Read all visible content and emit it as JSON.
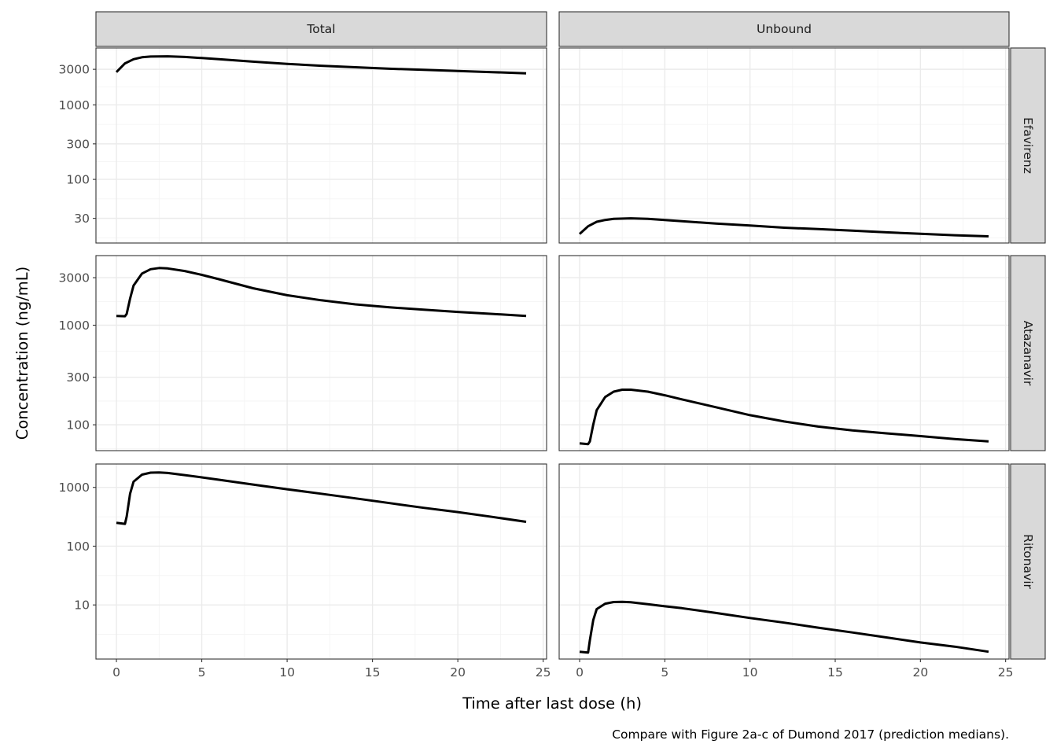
{
  "chart_data": {
    "type": "line",
    "caption": "Compare with Figure 2a-c of Dumond 2017 (prediction medians).",
    "xlabel": "Time after last dose (h)",
    "ylabel": "Concentration (ng/mL)",
    "y_scale": "log10",
    "grid": true,
    "line_color": "#000000",
    "columns": [
      "Total",
      "Unbound"
    ],
    "rows": [
      "Efavirenz",
      "Atazanavir",
      "Ritonavir"
    ],
    "xlim": [
      -1.2,
      25.2
    ],
    "x_ticks": [
      0,
      5,
      10,
      15,
      20,
      25
    ],
    "x_tick_labels": [
      "0",
      "5",
      "10",
      "15",
      "20",
      "25"
    ],
    "row_axes": [
      {
        "ylim": [
          14,
          5800
        ],
        "y_ticks": [
          30,
          100,
          300,
          1000,
          3000
        ],
        "y_tick_labels": [
          "30",
          "100",
          "300",
          "1000",
          "3000"
        ]
      },
      {
        "ylim": [
          55,
          5000
        ],
        "y_ticks": [
          100,
          300,
          1000,
          3000
        ],
        "y_tick_labels": [
          "100",
          "300",
          "1000",
          "3000"
        ]
      },
      {
        "ylim": [
          1.2,
          2500
        ],
        "y_ticks": [
          10,
          100,
          1000
        ],
        "y_tick_labels": [
          "10",
          "100",
          "1000"
        ]
      }
    ],
    "panels": [
      {
        "row": "Efavirenz",
        "column": "Total",
        "x": [
          0,
          0.5,
          1,
          1.5,
          2,
          3,
          4,
          5,
          6,
          8,
          10,
          12,
          14,
          16,
          18,
          20,
          22,
          24
        ],
        "y": [
          2750,
          3600,
          4100,
          4350,
          4450,
          4480,
          4400,
          4250,
          4100,
          3800,
          3550,
          3350,
          3200,
          3050,
          2950,
          2850,
          2750,
          2650
        ]
      },
      {
        "row": "Efavirenz",
        "column": "Unbound",
        "x": [
          0,
          0.5,
          1,
          1.5,
          2,
          3,
          4,
          5,
          6,
          8,
          10,
          12,
          14,
          16,
          18,
          20,
          22,
          24
        ],
        "y": [
          18.5,
          23.5,
          27,
          28.5,
          29.5,
          30,
          29.5,
          28.5,
          27.5,
          25.5,
          24,
          22.5,
          21.5,
          20.5,
          19.5,
          18.6,
          17.8,
          17.2
        ]
      },
      {
        "row": "Atazanavir",
        "column": "Total",
        "x": [
          0,
          0.5,
          0.6,
          0.8,
          1,
          1.5,
          2,
          2.5,
          3,
          4,
          5,
          6,
          8,
          10,
          12,
          14,
          16,
          18,
          20,
          22,
          24
        ],
        "y": [
          1240,
          1230,
          1300,
          1850,
          2500,
          3300,
          3650,
          3750,
          3720,
          3500,
          3200,
          2900,
          2350,
          2000,
          1780,
          1620,
          1510,
          1430,
          1360,
          1300,
          1240
        ]
      },
      {
        "row": "Atazanavir",
        "column": "Unbound",
        "x": [
          0,
          0.5,
          0.6,
          0.8,
          1,
          1.5,
          2,
          2.5,
          3,
          4,
          5,
          6,
          8,
          10,
          12,
          14,
          16,
          18,
          20,
          22,
          24
        ],
        "y": [
          65,
          64,
          68,
          100,
          140,
          190,
          215,
          225,
          225,
          215,
          198,
          180,
          150,
          125,
          108,
          96,
          88,
          82,
          77,
          72,
          68
        ]
      },
      {
        "row": "Ritonavir",
        "column": "Total",
        "x": [
          0,
          0.5,
          0.6,
          0.8,
          1,
          1.5,
          2,
          2.5,
          3,
          4,
          5,
          6,
          8,
          10,
          12,
          14,
          16,
          18,
          20,
          22,
          24
        ],
        "y": [
          250,
          240,
          320,
          780,
          1250,
          1650,
          1780,
          1790,
          1760,
          1620,
          1480,
          1350,
          1120,
          930,
          780,
          650,
          540,
          450,
          380,
          315,
          260
        ]
      },
      {
        "row": "Ritonavir",
        "column": "Unbound",
        "x": [
          0,
          0.5,
          0.6,
          0.8,
          1,
          1.5,
          2,
          2.5,
          3,
          4,
          5,
          6,
          8,
          10,
          12,
          14,
          16,
          18,
          20,
          22,
          24
        ],
        "y": [
          1.6,
          1.55,
          2.5,
          5.5,
          8.5,
          10.5,
          11.2,
          11.3,
          11.1,
          10.3,
          9.5,
          8.8,
          7.3,
          6.0,
          5.0,
          4.1,
          3.4,
          2.8,
          2.3,
          1.95,
          1.6
        ]
      }
    ]
  }
}
